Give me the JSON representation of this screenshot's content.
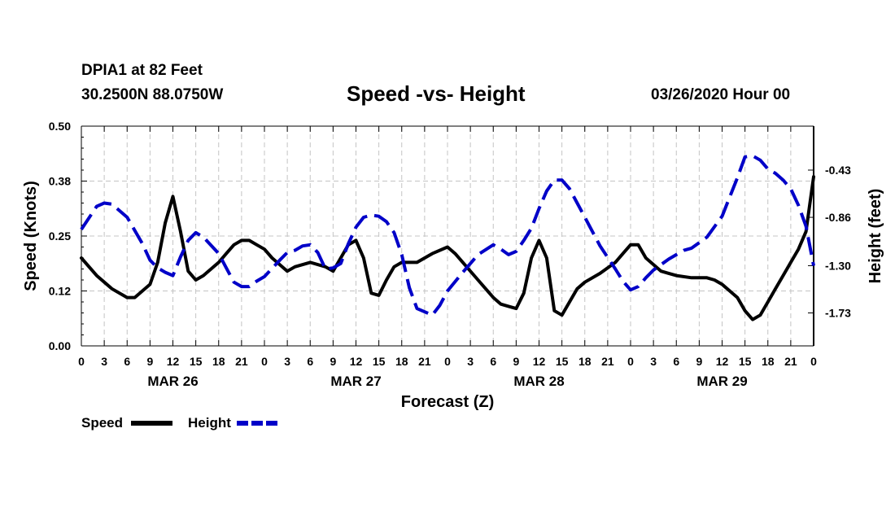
{
  "header": {
    "station": "DPIA1 at 82 Feet",
    "coords": "30.2500N 88.0750W",
    "title": "Speed -vs- Height",
    "date": "03/26/2020 Hour 00"
  },
  "legend": {
    "speed_label": "Speed",
    "height_label": "Height"
  },
  "chart_data": {
    "type": "line",
    "title": "Speed -vs- Height",
    "xlabel": "Forecast (Z)",
    "ylabel_left": "Speed (Knots)",
    "ylabel_right": "Height (feet)",
    "x_range_hours": [
      0,
      96
    ],
    "x_tick_step_hours": 3,
    "x_tick_labels": [
      "0",
      "3",
      "6",
      "9",
      "12",
      "15",
      "18",
      "21",
      "0",
      "3",
      "6",
      "9",
      "12",
      "15",
      "18",
      "21",
      "0",
      "3",
      "6",
      "9",
      "12",
      "15",
      "18",
      "21",
      "0",
      "3",
      "6",
      "9",
      "12",
      "15",
      "18",
      "21",
      "0"
    ],
    "day_labels": [
      {
        "hour": 12,
        "label": "MAR 26"
      },
      {
        "hour": 36,
        "label": "MAR 27"
      },
      {
        "hour": 60,
        "label": "MAR 28"
      },
      {
        "hour": 84,
        "label": "MAR 29"
      }
    ],
    "y_left": {
      "range": [
        0,
        0.5
      ],
      "ticks": [
        0.0,
        0.125,
        0.25,
        0.375,
        0.5
      ],
      "tick_labels": [
        "0.00",
        "0.12",
        "0.25",
        "0.38",
        "0.50"
      ]
    },
    "y_right": {
      "range": [
        -2.03,
        -0.03
      ],
      "ticks": [
        -1.73,
        -1.3,
        -0.86,
        -0.43
      ],
      "tick_labels": [
        "-1.73",
        "-1.30",
        "-0.86",
        "-0.43"
      ]
    },
    "grid": true,
    "series": [
      {
        "name": "Speed",
        "axis": "left",
        "color": "#000000",
        "style": "solid",
        "x": [
          0,
          2,
          4,
          6,
          7,
          9,
          10,
          11,
          12,
          13,
          14,
          15,
          16,
          17,
          18,
          19,
          20,
          21,
          22,
          23,
          24,
          25,
          27,
          28,
          30,
          32,
          33,
          34,
          35,
          36,
          37,
          38,
          39,
          40,
          41,
          42,
          44,
          46,
          48,
          49,
          50,
          52,
          53,
          54,
          55,
          56,
          57,
          58,
          59,
          60,
          61,
          62,
          63,
          64,
          65,
          66,
          68,
          70,
          71,
          72,
          73,
          74,
          76,
          77,
          78,
          80,
          81,
          82,
          83,
          84,
          85,
          86,
          87,
          88,
          89,
          90,
          91,
          92,
          93,
          94,
          95,
          96
        ],
        "y": [
          0.2,
          0.16,
          0.13,
          0.11,
          0.11,
          0.14,
          0.19,
          0.28,
          0.34,
          0.26,
          0.17,
          0.15,
          0.16,
          0.175,
          0.19,
          0.21,
          0.23,
          0.24,
          0.24,
          0.23,
          0.22,
          0.2,
          0.17,
          0.18,
          0.19,
          0.18,
          0.17,
          0.2,
          0.23,
          0.24,
          0.2,
          0.12,
          0.115,
          0.15,
          0.18,
          0.19,
          0.19,
          0.21,
          0.225,
          0.21,
          0.19,
          0.15,
          0.13,
          0.11,
          0.095,
          0.09,
          0.085,
          0.12,
          0.2,
          0.24,
          0.2,
          0.08,
          0.07,
          0.1,
          0.13,
          0.145,
          0.165,
          0.19,
          0.21,
          0.23,
          0.23,
          0.2,
          0.17,
          0.165,
          0.16,
          0.155,
          0.155,
          0.155,
          0.15,
          0.14,
          0.125,
          0.11,
          0.08,
          0.06,
          0.07,
          0.1,
          0.13,
          0.16,
          0.19,
          0.22,
          0.26,
          0.385
        ]
      },
      {
        "name": "Height",
        "axis": "right",
        "color": "#0000c8",
        "style": "dashed",
        "x": [
          0,
          2,
          3,
          4,
          6,
          8,
          9,
          10,
          11,
          12,
          13,
          14,
          15,
          16,
          18,
          19,
          20,
          21,
          22,
          23,
          24,
          26,
          27,
          28,
          29,
          30,
          31,
          32,
          33,
          34,
          35,
          36,
          37,
          38,
          39,
          40,
          41,
          42,
          43,
          44,
          46,
          47,
          48,
          50,
          52,
          54,
          55,
          56,
          57,
          58,
          59,
          60,
          61,
          62,
          63,
          64,
          65,
          66,
          68,
          70,
          71,
          72,
          73,
          74,
          75,
          76,
          77,
          78,
          79,
          80,
          82,
          84,
          86,
          87,
          88,
          89,
          90,
          91,
          92,
          93,
          94,
          95,
          96
        ],
        "y": [
          -0.97,
          -0.76,
          -0.73,
          -0.74,
          -0.86,
          -1.1,
          -1.25,
          -1.32,
          -1.36,
          -1.39,
          -1.22,
          -1.07,
          -1.0,
          -1.04,
          -1.19,
          -1.32,
          -1.45,
          -1.49,
          -1.49,
          -1.44,
          -1.4,
          -1.25,
          -1.18,
          -1.16,
          -1.12,
          -1.11,
          -1.18,
          -1.33,
          -1.32,
          -1.28,
          -1.1,
          -0.95,
          -0.86,
          -0.84,
          -0.85,
          -0.9,
          -1.0,
          -1.2,
          -1.5,
          -1.69,
          -1.75,
          -1.66,
          -1.53,
          -1.36,
          -1.2,
          -1.11,
          -1.15,
          -1.2,
          -1.17,
          -1.07,
          -0.96,
          -0.78,
          -0.62,
          -0.52,
          -0.52,
          -0.6,
          -0.73,
          -0.86,
          -1.12,
          -1.33,
          -1.44,
          -1.52,
          -1.49,
          -1.41,
          -1.34,
          -1.29,
          -1.24,
          -1.2,
          -1.16,
          -1.14,
          -1.04,
          -0.85,
          -0.5,
          -0.31,
          -0.3,
          -0.34,
          -0.42,
          -0.46,
          -0.52,
          -0.6,
          -0.75,
          -0.94,
          -1.3
        ]
      }
    ]
  }
}
